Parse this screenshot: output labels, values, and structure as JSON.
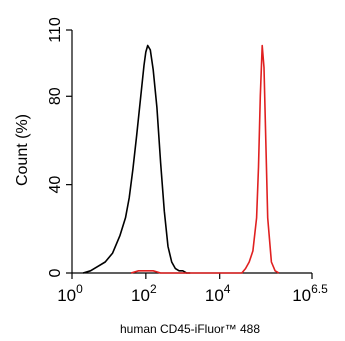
{
  "chart_data": {
    "type": "line",
    "xlabel": "human CD45-iFluor™ 488",
    "ylabel": "Count  (%)",
    "xscale": "log",
    "xlim": [
      0,
      6.5
    ],
    "ylim": [
      0,
      110
    ],
    "x_ticks": [
      {
        "base": "10",
        "exp": "0",
        "value": 0
      },
      {
        "base": "10",
        "exp": "2",
        "value": 2
      },
      {
        "base": "10",
        "exp": "4",
        "value": 4
      },
      {
        "base": "10",
        "exp": "6.5",
        "value": 6.5
      }
    ],
    "y_ticks": [
      {
        "label": "0",
        "value": 0
      },
      {
        "label": "40",
        "value": 40
      },
      {
        "label": "80",
        "value": 80
      },
      {
        "label": "110",
        "value": 110
      }
    ],
    "grid": false,
    "legend": "none",
    "series": [
      {
        "color": "#000000",
        "x_log": [
          0.3,
          0.5,
          0.7,
          0.9,
          1.1,
          1.3,
          1.45,
          1.55,
          1.65,
          1.75,
          1.85,
          1.95,
          2.0,
          2.05,
          2.12,
          2.2,
          2.3,
          2.4,
          2.5,
          2.6,
          2.7,
          2.8,
          2.9,
          3.0,
          3.1,
          3.2
        ],
        "y": [
          0,
          1,
          3,
          5,
          9,
          17,
          25,
          34,
          47,
          62,
          78,
          94,
          100,
          103,
          101,
          92,
          75,
          50,
          28,
          12,
          5,
          2,
          1,
          1,
          0,
          0
        ]
      },
      {
        "color": "#e02020",
        "x_log": [
          1.6,
          1.8,
          2.0,
          2.2,
          2.4,
          2.6,
          4.6,
          4.7,
          4.8,
          4.9,
          5.0,
          5.05,
          5.1,
          5.15,
          5.2,
          5.25,
          5.3,
          5.4,
          5.5,
          5.6
        ],
        "y": [
          0,
          1,
          1,
          1,
          0,
          0,
          0,
          2,
          5,
          10,
          25,
          48,
          80,
          103,
          93,
          60,
          25,
          5,
          1,
          0
        ]
      }
    ]
  }
}
